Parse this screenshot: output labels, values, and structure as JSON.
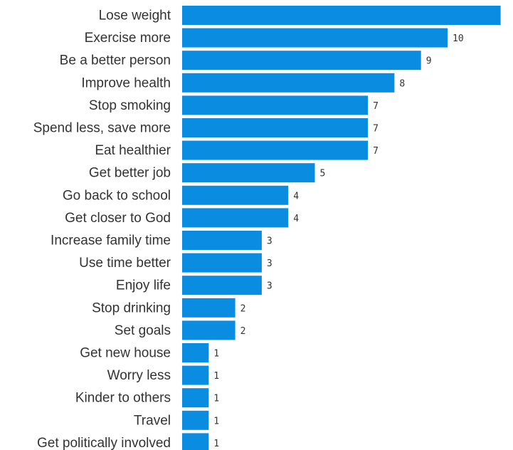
{
  "chart_data": {
    "type": "bar",
    "orientation": "horizontal",
    "categories": [
      "Lose weight",
      "Exercise more",
      "Be a better person",
      "Improve health",
      "Stop smoking",
      "Spend less, save more",
      "Eat healthier",
      "Get better job",
      "Go back to school",
      "Get closer to God",
      "Increase family time",
      "Use time better",
      "Enjoy life",
      "Stop drinking",
      "Set goals",
      "Get new house",
      "Worry less",
      "Kinder to others",
      "Travel",
      "Get politically involved"
    ],
    "values": [
      12,
      10,
      9,
      8,
      7,
      7,
      7,
      5,
      4,
      4,
      3,
      3,
      3,
      2,
      2,
      1,
      1,
      1,
      1,
      1
    ],
    "labels": [
      "",
      "10",
      "9",
      "8",
      "7",
      "7",
      "7",
      "5",
      "4",
      "4",
      "3",
      "3",
      "3",
      "2",
      "2",
      "1",
      "1",
      "1",
      "1",
      "1"
    ],
    "bar_color": "#0a8de0",
    "title": "",
    "xlabel": "",
    "ylabel": "",
    "grid": false
  }
}
